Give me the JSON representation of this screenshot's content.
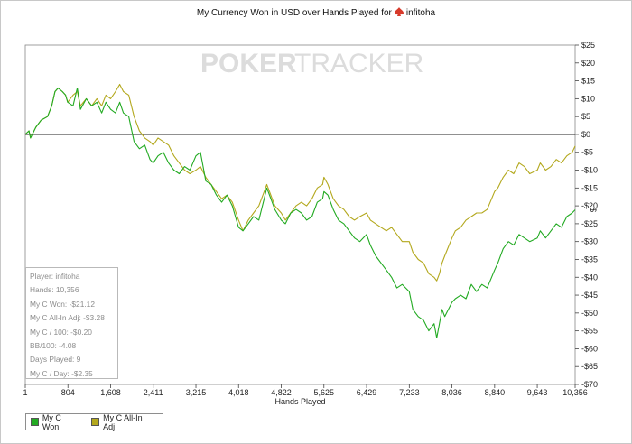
{
  "chart_data": {
    "type": "line",
    "title": "My Currency Won in USD over Hands Played for",
    "title_player": "infitoha",
    "watermark": {
      "left": "POKER",
      "right": "TRACKER"
    },
    "xlabel": "Hands Played",
    "ylabel": "$",
    "xlim": [
      1,
      10356
    ],
    "ylim": [
      -70,
      25
    ],
    "x_ticks": [
      1,
      804,
      1608,
      2411,
      3215,
      4018,
      4822,
      5625,
      6429,
      7233,
      8036,
      8840,
      9643,
      10356
    ],
    "x_tick_labels": [
      "1",
      "804",
      "1,608",
      "2,411",
      "3,215",
      "4,018",
      "4,822",
      "5,625",
      "6,429",
      "7,233",
      "8,036",
      "8,840",
      "9,643",
      "10,356"
    ],
    "y_ticks": [
      25,
      20,
      15,
      10,
      5,
      0,
      -5,
      -10,
      -15,
      -20,
      -25,
      -30,
      -35,
      -40,
      -45,
      -50,
      -55,
      -60,
      -65,
      -70
    ],
    "y_tick_labels": [
      "$25",
      "$20",
      "$15",
      "$10",
      "$5",
      "$0",
      "-$5",
      "-$10",
      "-$15",
      "-$20",
      "-$25",
      "-$30",
      "-$35",
      "-$40",
      "-$45",
      "-$50",
      "-$55",
      "-$60",
      "-$65",
      "-$70"
    ],
    "grid": false,
    "legend_position": "bottom-left",
    "series": [
      {
        "name": "My C Won",
        "color": "#22aa22",
        "points": [
          [
            1,
            0
          ],
          [
            70,
            1
          ],
          [
            100,
            -1
          ],
          [
            200,
            2
          ],
          [
            300,
            4
          ],
          [
            420,
            5
          ],
          [
            500,
            8
          ],
          [
            560,
            12
          ],
          [
            620,
            13
          ],
          [
            700,
            12
          ],
          [
            760,
            11
          ],
          [
            800,
            9
          ],
          [
            900,
            8
          ],
          [
            980,
            13
          ],
          [
            1040,
            7
          ],
          [
            1150,
            10
          ],
          [
            1250,
            8
          ],
          [
            1350,
            9
          ],
          [
            1440,
            6
          ],
          [
            1520,
            9
          ],
          [
            1608,
            7
          ],
          [
            1700,
            6
          ],
          [
            1780,
            9
          ],
          [
            1850,
            6
          ],
          [
            1950,
            5
          ],
          [
            2050,
            -2
          ],
          [
            2150,
            -4
          ],
          [
            2250,
            -3
          ],
          [
            2350,
            -7
          ],
          [
            2411,
            -8
          ],
          [
            2500,
            -6
          ],
          [
            2600,
            -5
          ],
          [
            2700,
            -8
          ],
          [
            2800,
            -10
          ],
          [
            2900,
            -11
          ],
          [
            3000,
            -9
          ],
          [
            3100,
            -10
          ],
          [
            3215,
            -6
          ],
          [
            3300,
            -5
          ],
          [
            3400,
            -13
          ],
          [
            3500,
            -14
          ],
          [
            3600,
            -17
          ],
          [
            3700,
            -19
          ],
          [
            3800,
            -17
          ],
          [
            3900,
            -20
          ],
          [
            4018,
            -26
          ],
          [
            4100,
            -27
          ],
          [
            4200,
            -25
          ],
          [
            4300,
            -23
          ],
          [
            4400,
            -24
          ],
          [
            4500,
            -18
          ],
          [
            4550,
            -15
          ],
          [
            4600,
            -17
          ],
          [
            4700,
            -21
          ],
          [
            4822,
            -24
          ],
          [
            4900,
            -25
          ],
          [
            5000,
            -22
          ],
          [
            5100,
            -21
          ],
          [
            5200,
            -22
          ],
          [
            5300,
            -24
          ],
          [
            5400,
            -23
          ],
          [
            5500,
            -19
          ],
          [
            5600,
            -18
          ],
          [
            5625,
            -16
          ],
          [
            5700,
            -17
          ],
          [
            5800,
            -21
          ],
          [
            5900,
            -24
          ],
          [
            6000,
            -25
          ],
          [
            6100,
            -27
          ],
          [
            6200,
            -29
          ],
          [
            6300,
            -30
          ],
          [
            6429,
            -28
          ],
          [
            6500,
            -31
          ],
          [
            6600,
            -34
          ],
          [
            6700,
            -36
          ],
          [
            6800,
            -38
          ],
          [
            6900,
            -40
          ],
          [
            7000,
            -43
          ],
          [
            7100,
            -42
          ],
          [
            7233,
            -44
          ],
          [
            7300,
            -49
          ],
          [
            7400,
            -51
          ],
          [
            7500,
            -52
          ],
          [
            7600,
            -55
          ],
          [
            7700,
            -53
          ],
          [
            7750,
            -57
          ],
          [
            7800,
            -53
          ],
          [
            7850,
            -49
          ],
          [
            7900,
            -51
          ],
          [
            8036,
            -47
          ],
          [
            8100,
            -46
          ],
          [
            8200,
            -45
          ],
          [
            8300,
            -46
          ],
          [
            8400,
            -42
          ],
          [
            8500,
            -44
          ],
          [
            8600,
            -42
          ],
          [
            8700,
            -43
          ],
          [
            8840,
            -38
          ],
          [
            8900,
            -36
          ],
          [
            9000,
            -32
          ],
          [
            9100,
            -30
          ],
          [
            9200,
            -31
          ],
          [
            9300,
            -28
          ],
          [
            9400,
            -29
          ],
          [
            9500,
            -30
          ],
          [
            9643,
            -29
          ],
          [
            9700,
            -27
          ],
          [
            9800,
            -29
          ],
          [
            9900,
            -27
          ],
          [
            10000,
            -25
          ],
          [
            10100,
            -26
          ],
          [
            10200,
            -23
          ],
          [
            10300,
            -22
          ],
          [
            10356,
            -21.12
          ]
        ]
      },
      {
        "name": "My C All-In Adj",
        "color": "#b3a81d",
        "points": [
          [
            1,
            0
          ],
          [
            70,
            1
          ],
          [
            100,
            -1
          ],
          [
            200,
            2
          ],
          [
            300,
            4
          ],
          [
            420,
            5
          ],
          [
            500,
            8
          ],
          [
            560,
            12
          ],
          [
            620,
            13
          ],
          [
            700,
            12
          ],
          [
            760,
            11
          ],
          [
            800,
            9
          ],
          [
            900,
            11
          ],
          [
            980,
            12
          ],
          [
            1040,
            8
          ],
          [
            1150,
            10
          ],
          [
            1250,
            8
          ],
          [
            1350,
            10
          ],
          [
            1440,
            8
          ],
          [
            1520,
            11
          ],
          [
            1608,
            10
          ],
          [
            1700,
            12
          ],
          [
            1780,
            14
          ],
          [
            1850,
            12
          ],
          [
            1950,
            11
          ],
          [
            2050,
            5
          ],
          [
            2150,
            1
          ],
          [
            2250,
            -1
          ],
          [
            2350,
            -2
          ],
          [
            2411,
            -3
          ],
          [
            2500,
            -1
          ],
          [
            2600,
            -2
          ],
          [
            2700,
            -3
          ],
          [
            2800,
            -6
          ],
          [
            2900,
            -8
          ],
          [
            3000,
            -10
          ],
          [
            3100,
            -11
          ],
          [
            3215,
            -10
          ],
          [
            3300,
            -9
          ],
          [
            3400,
            -12
          ],
          [
            3500,
            -14
          ],
          [
            3600,
            -16
          ],
          [
            3700,
            -18
          ],
          [
            3800,
            -17
          ],
          [
            3900,
            -19
          ],
          [
            4018,
            -24
          ],
          [
            4100,
            -27
          ],
          [
            4200,
            -24
          ],
          [
            4300,
            -22
          ],
          [
            4400,
            -20
          ],
          [
            4500,
            -16
          ],
          [
            4550,
            -14
          ],
          [
            4600,
            -16
          ],
          [
            4700,
            -20
          ],
          [
            4822,
            -22
          ],
          [
            4900,
            -24
          ],
          [
            5000,
            -22
          ],
          [
            5100,
            -20
          ],
          [
            5200,
            -19
          ],
          [
            5300,
            -20
          ],
          [
            5400,
            -18
          ],
          [
            5500,
            -15
          ],
          [
            5600,
            -14
          ],
          [
            5625,
            -12
          ],
          [
            5700,
            -14
          ],
          [
            5800,
            -18
          ],
          [
            5900,
            -20
          ],
          [
            6000,
            -21
          ],
          [
            6100,
            -23
          ],
          [
            6200,
            -24
          ],
          [
            6300,
            -23
          ],
          [
            6429,
            -22
          ],
          [
            6500,
            -24
          ],
          [
            6600,
            -25
          ],
          [
            6700,
            -26
          ],
          [
            6800,
            -27
          ],
          [
            6900,
            -26
          ],
          [
            7000,
            -28
          ],
          [
            7100,
            -30
          ],
          [
            7233,
            -30
          ],
          [
            7300,
            -33
          ],
          [
            7400,
            -35
          ],
          [
            7500,
            -36
          ],
          [
            7600,
            -39
          ],
          [
            7700,
            -40
          ],
          [
            7750,
            -41
          ],
          [
            7800,
            -39
          ],
          [
            7850,
            -36
          ],
          [
            7900,
            -34
          ],
          [
            8036,
            -29
          ],
          [
            8100,
            -27
          ],
          [
            8200,
            -26
          ],
          [
            8300,
            -24
          ],
          [
            8400,
            -23
          ],
          [
            8500,
            -22
          ],
          [
            8600,
            -22
          ],
          [
            8700,
            -21
          ],
          [
            8840,
            -16
          ],
          [
            8900,
            -15
          ],
          [
            9000,
            -12
          ],
          [
            9100,
            -10
          ],
          [
            9200,
            -11
          ],
          [
            9300,
            -8
          ],
          [
            9400,
            -9
          ],
          [
            9500,
            -11
          ],
          [
            9643,
            -10
          ],
          [
            9700,
            -8
          ],
          [
            9800,
            -10
          ],
          [
            9900,
            -9
          ],
          [
            10000,
            -7
          ],
          [
            10100,
            -8
          ],
          [
            10200,
            -6
          ],
          [
            10300,
            -5
          ],
          [
            10356,
            -3.28
          ]
        ]
      }
    ]
  },
  "stats": {
    "player": "Player: infitoha",
    "hands": "Hands: 10,356",
    "won": "My C Won: -$21.12",
    "allin_adj": "My C All-In Adj: -$3.28",
    "per_100": "My C / 100: -$0.20",
    "bb_100": "BB/100: -4.08",
    "days_played": "Days Played: 9",
    "per_day": "My C / Day: -$2.35"
  },
  "colors": {
    "won": "#22aa22",
    "allin_adj": "#b3a81d",
    "spade_icon": "#d73a2a",
    "watermark": "#dcdcdc"
  }
}
